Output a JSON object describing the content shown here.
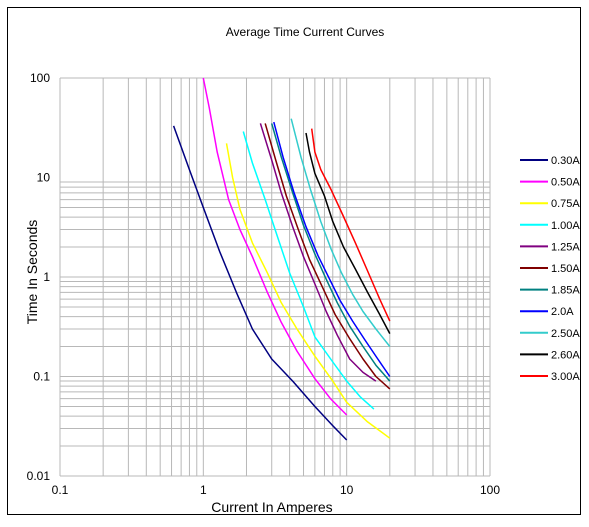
{
  "chart_data": {
    "type": "line",
    "title": "Average Time Current Curves",
    "xlabel": "Current In Amperes",
    "ylabel": "Time In Seconds",
    "x_scale": "log",
    "y_scale": "log",
    "xlim": [
      0.1,
      100
    ],
    "ylim": [
      0.01,
      100
    ],
    "x_ticks": [
      "0.1",
      "1",
      "10",
      "100"
    ],
    "y_ticks": [
      "100",
      "10",
      "1",
      "0.1",
      "0.01"
    ],
    "grid": true,
    "legend_position": "right",
    "series": [
      {
        "name": "0.30A",
        "color": "#000080",
        "x": [
          0.62,
          0.8,
          1.0,
          1.3,
          1.7,
          2.2,
          3.0,
          4.2,
          6.0,
          8.0,
          10.0
        ],
        "y": [
          33,
          12,
          5,
          1.8,
          0.7,
          0.3,
          0.15,
          0.09,
          0.05,
          0.032,
          0.023
        ]
      },
      {
        "name": "0.50A",
        "color": "#ff00ff",
        "x": [
          1.0,
          1.1,
          1.25,
          1.5,
          1.8,
          2.2,
          2.8,
          3.5,
          4.5,
          6.0,
          7.7,
          10.0
        ],
        "y": [
          100,
          50,
          18,
          6,
          3,
          1.6,
          0.7,
          0.35,
          0.18,
          0.095,
          0.06,
          0.041
        ]
      },
      {
        "name": "0.75A",
        "color": "#ffff00",
        "x": [
          1.45,
          1.6,
          1.8,
          2.2,
          2.8,
          3.5,
          4.5,
          6.0,
          8.0,
          10.0,
          14.0,
          20.0
        ],
        "y": [
          22,
          10,
          4.8,
          2.2,
          1.1,
          0.55,
          0.3,
          0.16,
          0.09,
          0.055,
          0.035,
          0.024
        ]
      },
      {
        "name": "1.00A",
        "color": "#00ffff",
        "x": [
          1.9,
          2.2,
          2.7,
          3.3,
          4.0,
          5.0,
          6.0,
          8.0,
          10.0,
          12.5,
          15.5
        ],
        "y": [
          29,
          14,
          6,
          2.5,
          1.1,
          0.5,
          0.25,
          0.14,
          0.09,
          0.062,
          0.047
        ]
      },
      {
        "name": "1.25A",
        "color": "#800080",
        "x": [
          2.5,
          3.0,
          3.5,
          4.2,
          5.0,
          6.0,
          7.2,
          8.6,
          10.5,
          13.0,
          16.0
        ],
        "y": [
          35,
          15,
          7,
          3.2,
          1.6,
          0.85,
          0.45,
          0.26,
          0.15,
          0.11,
          0.09
        ]
      },
      {
        "name": "1.50A",
        "color": "#800000",
        "x": [
          2.7,
          3.2,
          3.8,
          4.6,
          5.5,
          6.8,
          8.3,
          10.5,
          13.0,
          16.0,
          20.0
        ],
        "y": [
          35,
          15,
          6.5,
          3.0,
          1.5,
          0.78,
          0.42,
          0.24,
          0.15,
          0.1,
          0.075
        ]
      },
      {
        "name": "1.85A",
        "color": "#008080",
        "x": [
          3.0,
          3.5,
          4.2,
          5.0,
          6.0,
          7.2,
          8.6,
          10.5,
          13.0,
          16.0,
          20.0
        ],
        "y": [
          35,
          16,
          7,
          3.3,
          1.7,
          0.95,
          0.55,
          0.32,
          0.2,
          0.13,
          0.09
        ]
      },
      {
        "name": "2.0A",
        "color": "#0000ff",
        "x": [
          3.1,
          3.6,
          4.3,
          5.2,
          6.3,
          7.6,
          9.0,
          11.0,
          13.5,
          16.5,
          20.0
        ],
        "y": [
          36,
          16,
          7,
          3.2,
          1.65,
          0.95,
          0.58,
          0.36,
          0.23,
          0.15,
          0.1
        ]
      },
      {
        "name": "2.50A",
        "color": "#33cccc",
        "x": [
          4.1,
          4.8,
          5.6,
          6.6,
          7.8,
          9.2,
          11.0,
          13.0,
          16.0,
          20.0
        ],
        "y": [
          39,
          16,
          7.5,
          3.6,
          1.9,
          1.1,
          0.67,
          0.45,
          0.3,
          0.2
        ]
      },
      {
        "name": "2.60A",
        "color": "#000000",
        "x": [
          5.2,
          5.5,
          6.0,
          7.0,
          8.0,
          9.5,
          11.5,
          14.0,
          17.0,
          20.0
        ],
        "y": [
          28,
          18,
          11,
          6.5,
          3.6,
          2.0,
          1.2,
          0.7,
          0.42,
          0.27
        ]
      },
      {
        "name": "3.00A",
        "color": "#ff0000",
        "x": [
          5.7,
          6.0,
          6.6,
          7.8,
          9.4,
          11.5,
          14.0,
          17.0,
          20.0
        ],
        "y": [
          31,
          18,
          12,
          7.5,
          4.2,
          2.2,
          1.15,
          0.6,
          0.36
        ]
      }
    ]
  }
}
